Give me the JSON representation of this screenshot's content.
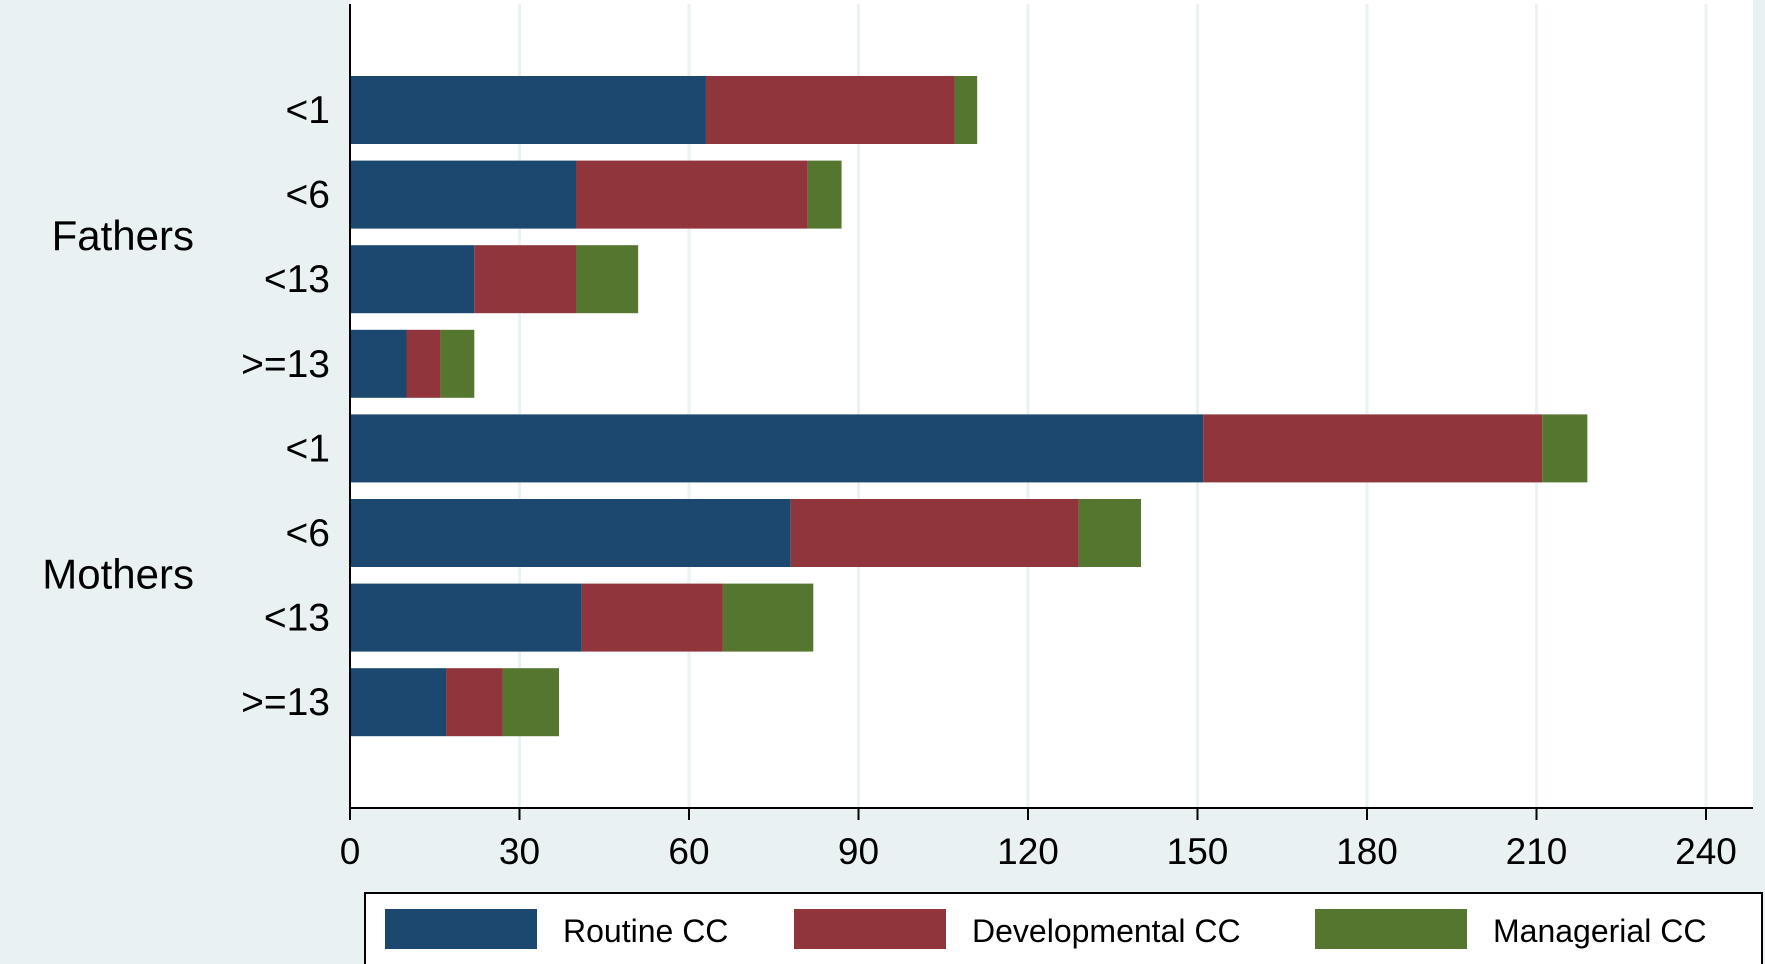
{
  "colors": {
    "background": "#e9f1f3",
    "plot_background": "#ffffff",
    "grid": "#eaf2f3",
    "routine": "#1c476e",
    "developmental": "#90353c",
    "managerial": "#55762f",
    "axis": "#000000"
  },
  "chart_data": {
    "type": "bar",
    "orientation": "horizontal",
    "stacked": true,
    "title": "",
    "xlabel": "",
    "ylabel": "",
    "xlim": [
      0,
      240
    ],
    "x_ticks": [
      "0",
      "30",
      "60",
      "90",
      "120",
      "150",
      "180",
      "210",
      "240"
    ],
    "grid": true,
    "legend_position": "bottom",
    "groups": [
      {
        "name": "Fathers",
        "categories": [
          "<1",
          "<6",
          "<13",
          ">=13"
        ]
      },
      {
        "name": "Mothers",
        "categories": [
          "<1",
          "<6",
          "<13",
          ">=13"
        ]
      }
    ],
    "series": [
      {
        "name": "Routine CC",
        "values": [
          63,
          40,
          22,
          10,
          151,
          78,
          41,
          17
        ]
      },
      {
        "name": "Developmental CC",
        "values": [
          44,
          41,
          18,
          6,
          60,
          51,
          25,
          10
        ]
      },
      {
        "name": "Managerial CC",
        "values": [
          4,
          6,
          11,
          6,
          8,
          11,
          16,
          10
        ]
      }
    ]
  }
}
